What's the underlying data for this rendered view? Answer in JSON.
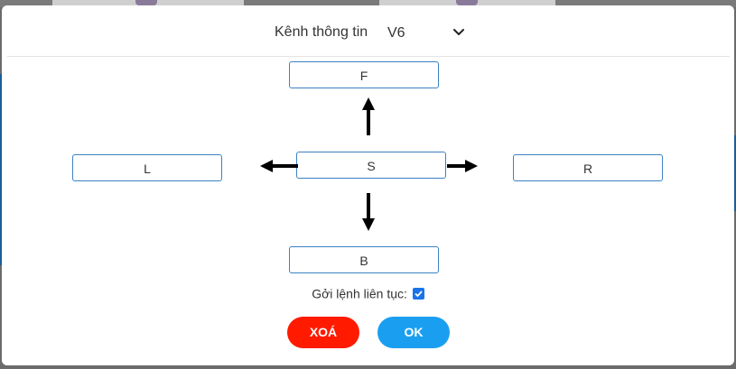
{
  "header": {
    "label": "Kênh thông tin",
    "channel_selected": "V6",
    "chevron_icon": "chevron-down-icon"
  },
  "controls": {
    "forward": "F",
    "left": "L",
    "stop": "S",
    "right": "R",
    "back": "B"
  },
  "arrows": [
    "arrow-up-icon",
    "arrow-down-icon",
    "arrow-left-icon",
    "arrow-right-icon"
  ],
  "continuous": {
    "label": "Gởi lệnh liên tục:",
    "checked": true
  },
  "actions": {
    "delete_label": "XOÁ",
    "ok_label": "OK"
  },
  "colors": {
    "accent_border": "#3b82c4",
    "delete": "#ff1a00",
    "ok": "#1a9ff0",
    "checkbox": "#1a73e8"
  }
}
